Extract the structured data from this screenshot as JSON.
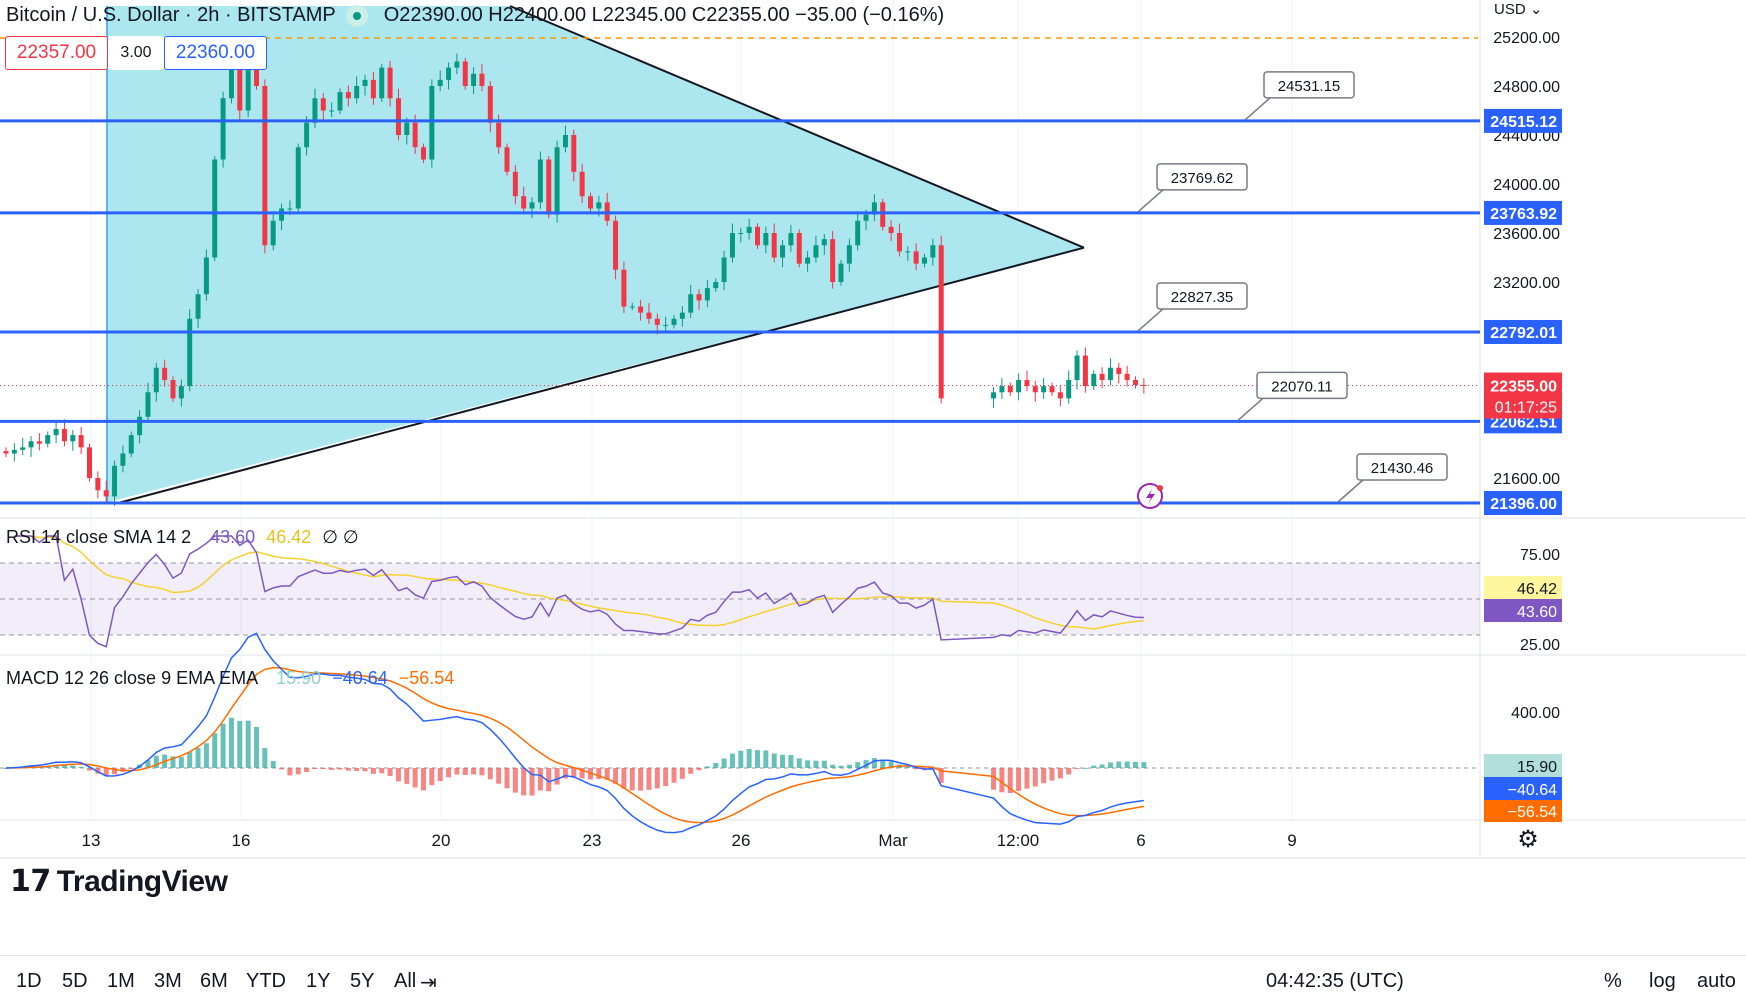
{
  "header": {
    "symbol": "Bitcoin / U.S. Dollar · 2h · BITSTAMP",
    "ohlc": "O22390.00 H22400.00 L22345.00 C22355.00 −35.00 (−0.16%)",
    "sell_price": "22357.00",
    "spread": "3.00",
    "buy_price": "22360.00"
  },
  "price_axis": {
    "currency": "USD",
    "ticks": [
      "25200.00",
      "24800.00",
      "24400.00",
      "24000.00",
      "23600.00",
      "23200.00",
      "21600.00"
    ],
    "tick_values": [
      25200,
      24800,
      24400,
      24000,
      23600,
      23200,
      21600
    ],
    "current_price": "22355.00",
    "countdown": "01:17:25",
    "current_value": 22355
  },
  "horizontal_levels": [
    {
      "value": 24515.12,
      "label": "24515.12",
      "callout": "24531.15"
    },
    {
      "value": 23763.92,
      "label": "23763.92",
      "callout": "23769.62"
    },
    {
      "value": 22792.01,
      "label": "22792.01",
      "callout": "22827.35"
    },
    {
      "value": 22062.51,
      "label": "22062.51",
      "callout": "22070.11"
    },
    {
      "value": 21396.0,
      "label": "21396.00",
      "callout": "21430.46"
    }
  ],
  "time_axis": {
    "labels": [
      "13",
      "16",
      "20",
      "23",
      "26",
      "Mar",
      "12:00",
      "6",
      "9"
    ]
  },
  "rsi": {
    "title": "RSI 14 close SMA 14 2",
    "rsi_value": "43.60",
    "sma_value": "46.42",
    "extra": "∅ ∅",
    "ticks": [
      "75.00",
      "25.00"
    ],
    "band_upper": 70,
    "band_lower": 30,
    "rsi_color": "#7e57c2",
    "sma_color": "#f5d130"
  },
  "macd": {
    "title": "MACD 12 26 close 9 EMA EMA",
    "hist_value": "15.90",
    "macd_value": "−40.64",
    "signal_value": "−56.54",
    "ticks": [
      "400.00"
    ],
    "macd_color": "#2962ff",
    "signal_color": "#ff6d00"
  },
  "colors": {
    "up": "#089981",
    "down": "#f23645",
    "level": "#2962ff",
    "triangle_fill": "#a8e6ef"
  },
  "bottom_bar": {
    "ranges": [
      "1D",
      "5D",
      "1M",
      "3M",
      "6M",
      "YTD",
      "1Y",
      "5Y",
      "All"
    ],
    "clock": "04:42:35 (UTC)",
    "percent": "%",
    "log": "log",
    "auto": "auto"
  },
  "branding": {
    "name": "TradingView"
  },
  "chart_data": {
    "type": "candlestick",
    "title": "Bitcoin / U.S. Dollar · 2h · BITSTAMP",
    "y_range": [
      21250,
      25300
    ],
    "close_path": [
      21800,
      21830,
      21850,
      21900,
      21880,
      21950,
      22000,
      21900,
      21950,
      21850,
      21600,
      21500,
      21450,
      21700,
      21800,
      21950,
      22100,
      22300,
      22500,
      22400,
      22250,
      22350,
      22900,
      23100,
      23400,
      24200,
      24700,
      24950,
      24600,
      25100,
      24800,
      23500,
      23700,
      23800,
      23800,
      24300,
      24500,
      24700,
      24600,
      24600,
      24750,
      24700,
      24800,
      24850,
      24700,
      24950,
      24700,
      24400,
      24500,
      24300,
      24200,
      24800,
      24850,
      24950,
      25000,
      24800,
      24900,
      24800,
      24500,
      24300,
      24100,
      23900,
      23800,
      23850,
      24200,
      23750,
      24300,
      24400,
      24100,
      23900,
      23800,
      23850,
      23700,
      23300,
      23000,
      23000,
      22950,
      22900,
      22850,
      22850,
      22900,
      22950,
      23100,
      23050,
      23150,
      23200,
      23400,
      23600,
      23600,
      23650,
      23500,
      23600,
      23400,
      23500,
      23600,
      23350,
      23400,
      23500,
      23550,
      23200,
      23350,
      23500,
      23700,
      23750,
      23850,
      23650,
      23600,
      23450,
      23450,
      23350,
      23400,
      23500,
      22250,
      22300,
      22350,
      22300,
      22400,
      22350,
      22300,
      22350,
      22300,
      22250,
      22400,
      22600,
      22350,
      22450,
      22400,
      22500,
      22450,
      22400,
      22360,
      22355
    ],
    "levels": [
      24515.12,
      23763.92,
      22792.01,
      22062.51,
      21396.0
    ],
    "triangle": {
      "apex": [
        1084,
        23480
      ],
      "upper_start": [
        510,
        25300
      ],
      "lower_start": [
        107,
        21400
      ]
    }
  }
}
